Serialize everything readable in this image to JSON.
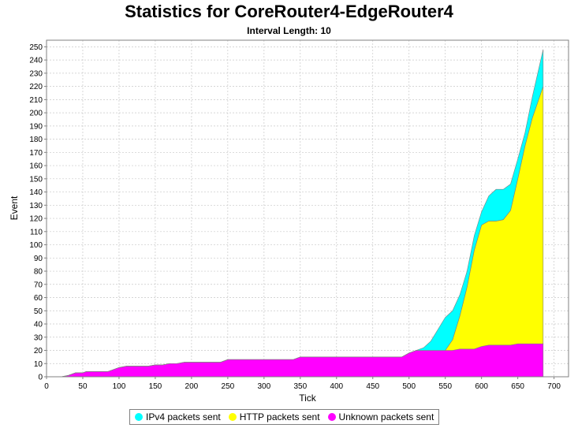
{
  "chart_data": {
    "type": "area",
    "stacked": true,
    "title": "Statistics for CoreRouter4-EdgeRouter4",
    "subtitle": "Interval Length: 10",
    "xlabel": "Tick",
    "ylabel": "Event",
    "xlim": [
      0,
      720
    ],
    "ylim": [
      0,
      255
    ],
    "x_ticks": [
      0,
      50,
      100,
      150,
      200,
      250,
      300,
      350,
      400,
      450,
      500,
      550,
      600,
      650,
      700
    ],
    "y_ticks": [
      0,
      10,
      20,
      30,
      40,
      50,
      60,
      70,
      80,
      90,
      100,
      110,
      120,
      130,
      140,
      150,
      160,
      170,
      180,
      190,
      200,
      210,
      220,
      230,
      240,
      250
    ],
    "grid": true,
    "legend_position": "bottom",
    "series": [
      {
        "name": "Unknown packets sent",
        "color": "#ff00ff",
        "points": [
          [
            10,
            0
          ],
          [
            20,
            0
          ],
          [
            30,
            1
          ],
          [
            40,
            3
          ],
          [
            50,
            3
          ],
          [
            55,
            4
          ],
          [
            85,
            4
          ],
          [
            90,
            5
          ],
          [
            100,
            7
          ],
          [
            110,
            8
          ],
          [
            140,
            8
          ],
          [
            150,
            9
          ],
          [
            160,
            9
          ],
          [
            170,
            10
          ],
          [
            180,
            10
          ],
          [
            190,
            11
          ],
          [
            240,
            11
          ],
          [
            250,
            13
          ],
          [
            340,
            13
          ],
          [
            350,
            15
          ],
          [
            490,
            15
          ],
          [
            500,
            18
          ],
          [
            510,
            20
          ],
          [
            560,
            20
          ],
          [
            570,
            21
          ],
          [
            590,
            21
          ],
          [
            600,
            23
          ],
          [
            610,
            24
          ],
          [
            640,
            24
          ],
          [
            650,
            25
          ],
          [
            685,
            25
          ]
        ]
      },
      {
        "name": "HTTP packets sent",
        "color": "#ffff00",
        "points": [
          [
            10,
            0
          ],
          [
            540,
            0
          ],
          [
            550,
            0
          ],
          [
            560,
            8
          ],
          [
            570,
            25
          ],
          [
            580,
            47
          ],
          [
            590,
            75
          ],
          [
            600,
            92
          ],
          [
            610,
            94
          ],
          [
            620,
            94
          ],
          [
            630,
            95
          ],
          [
            640,
            102
          ],
          [
            650,
            125
          ],
          [
            660,
            150
          ],
          [
            670,
            171
          ],
          [
            685,
            195
          ]
        ]
      },
      {
        "name": "IPv4 packets sent",
        "color": "#00ffff",
        "points": [
          [
            10,
            0
          ],
          [
            510,
            0
          ],
          [
            520,
            2
          ],
          [
            530,
            7
          ],
          [
            540,
            16
          ],
          [
            550,
            25
          ],
          [
            560,
            22
          ],
          [
            570,
            16
          ],
          [
            580,
            12
          ],
          [
            590,
            11
          ],
          [
            600,
            10
          ],
          [
            610,
            19
          ],
          [
            620,
            24
          ],
          [
            630,
            23
          ],
          [
            640,
            20
          ],
          [
            650,
            15
          ],
          [
            660,
            10
          ],
          [
            670,
            16
          ],
          [
            685,
            28
          ]
        ]
      }
    ]
  }
}
